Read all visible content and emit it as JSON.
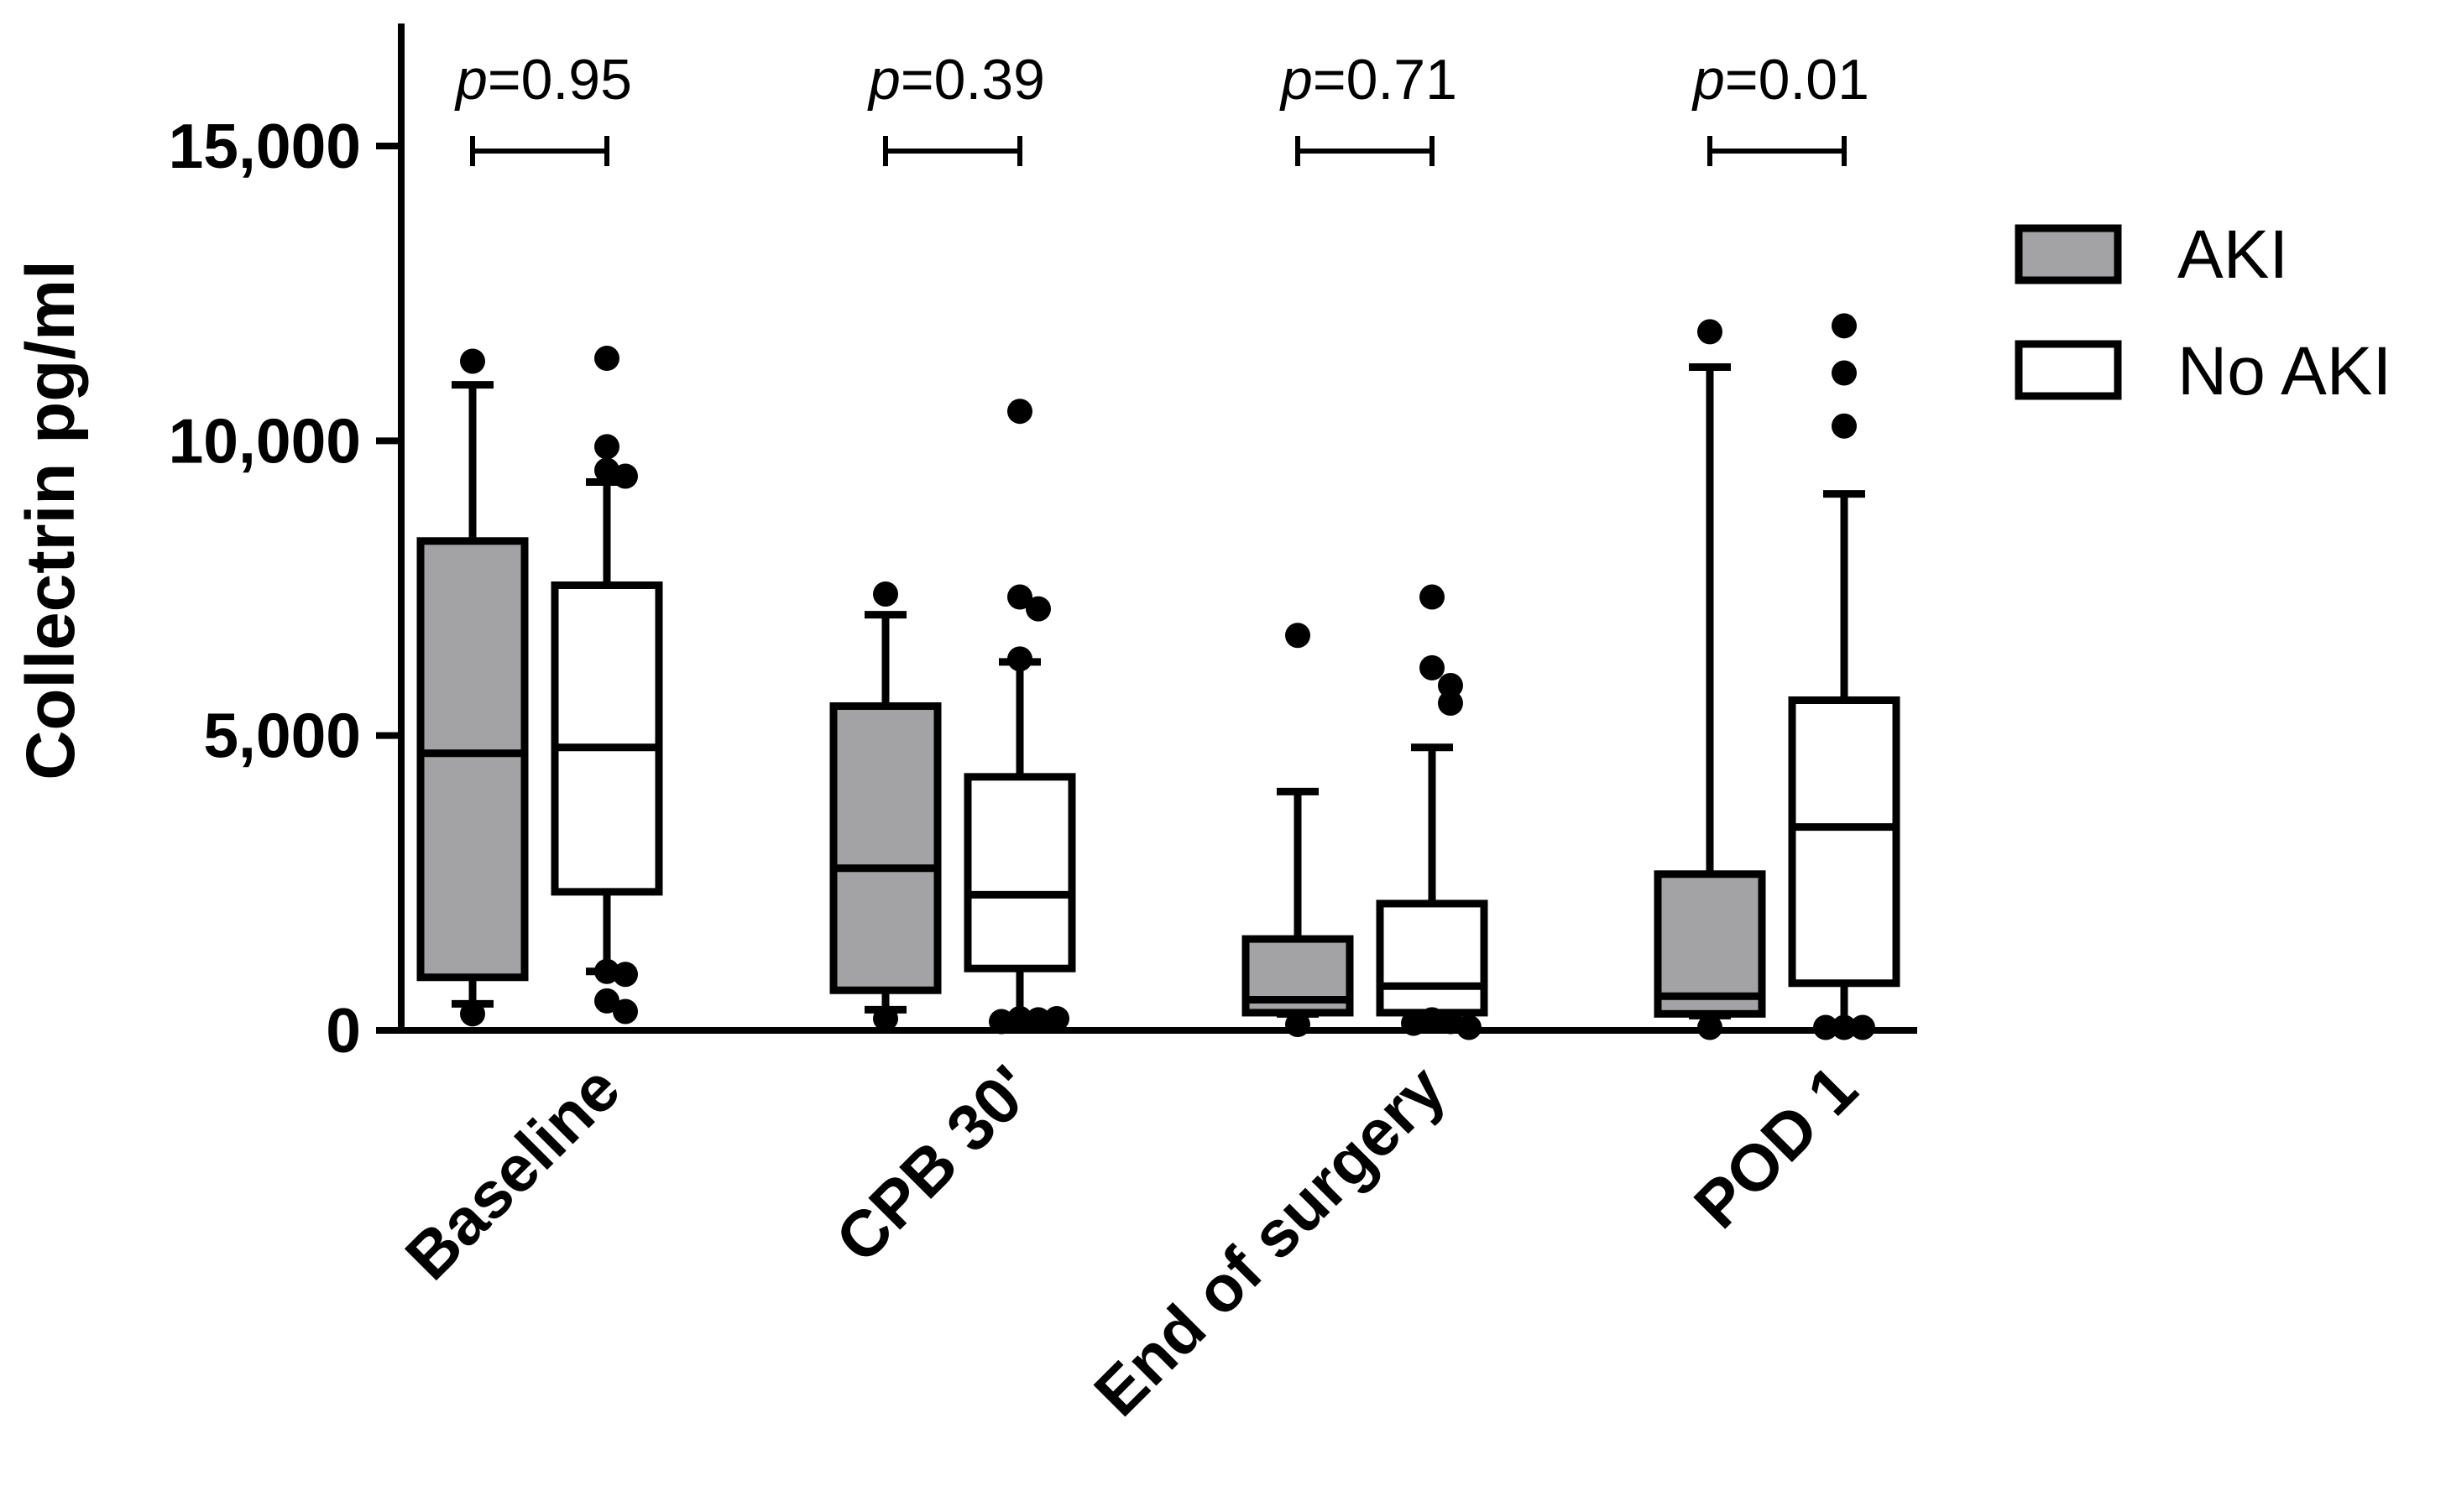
{
  "chart_data": {
    "type": "boxplot",
    "ylabel": "Collectrin pg/ml",
    "xlabel": "",
    "ylim": [
      0,
      17000
    ],
    "yticks": [
      0,
      5000,
      10000,
      15000
    ],
    "ytick_labels": [
      "0",
      "5,000",
      "10,000",
      "15,000"
    ],
    "categories": [
      "Baseline",
      "CPB 30'",
      "End of surgery",
      "POD 1"
    ],
    "legend": [
      {
        "name": "AKI",
        "fill": "#a3a3a6"
      },
      {
        "name": "No AKI",
        "fill": "#ffffff"
      }
    ],
    "p_values": [
      {
        "prefix": "p",
        "text": "=0.95"
      },
      {
        "prefix": "p",
        "text": "=0.39"
      },
      {
        "prefix": "p",
        "text": "=0.71"
      },
      {
        "prefix": "p",
        "text": "=0.01"
      }
    ],
    "series": [
      {
        "name": "AKI",
        "boxes": [
          {
            "whisker_low": 450,
            "q1": 900,
            "median": 4700,
            "q3": 8300,
            "whisker_high": 10950,
            "outliers": [
              11350,
              280
            ]
          },
          {
            "whisker_low": 350,
            "q1": 680,
            "median": 2750,
            "q3": 5500,
            "whisker_high": 7050,
            "outliers": [
              7400,
              200
            ]
          },
          {
            "whisker_low": 280,
            "q1": 300,
            "median": 520,
            "q3": 1550,
            "whisker_high": 4050,
            "outliers": [
              6700,
              100
            ]
          },
          {
            "whisker_low": 250,
            "q1": 280,
            "median": 580,
            "q3": 2650,
            "whisker_high": 11250,
            "outliers": [
              11850,
              50
            ]
          }
        ]
      },
      {
        "name": "No AKI",
        "boxes": [
          {
            "whisker_low": 1000,
            "q1": 2350,
            "median": 4800,
            "q3": 7550,
            "whisker_high": 9300,
            "outliers": [
              11400,
              9900,
              9500,
              9400,
              1000,
              950,
              500,
              320
            ]
          },
          {
            "whisker_low": 250,
            "q1": 1050,
            "median": 2300,
            "q3": 4300,
            "whisker_high": 6250,
            "outliers": [
              10500,
              7350,
              7150,
              6300,
              200,
              180,
              150,
              200
            ]
          },
          {
            "whisker_low": 200,
            "q1": 300,
            "median": 750,
            "q3": 2150,
            "whisker_high": 4800,
            "outliers": [
              7350,
              6150,
              5850,
              5550,
              180,
              150,
              120,
              50
            ]
          },
          {
            "whisker_low": 100,
            "q1": 800,
            "median": 3450,
            "q3": 5600,
            "whisker_high": 9100,
            "outliers": [
              11950,
              11150,
              10250,
              50,
              50,
              50
            ]
          }
        ]
      }
    ]
  }
}
